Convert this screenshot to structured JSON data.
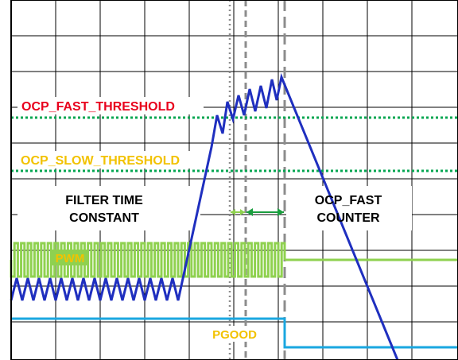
{
  "labels": {
    "ocp_fast_threshold": "OCP_FAST_THRESHOLD",
    "ocp_slow_threshold": "OCP_SLOW_THRESHOLD",
    "filter_time_line1": "FILTER TIME",
    "filter_time_line2": "CONSTANT",
    "ocp_fast_counter_line1": "OCP_FAST",
    "ocp_fast_counter_line2": "COUNTER",
    "pwm": "PWM",
    "pgood": "PGOOD"
  },
  "colors": {
    "grid": "#000000",
    "fast_threshold_line": "#00a651",
    "slow_threshold_line": "#00a651",
    "fast_label": "#e8001c",
    "slow_label": "#f2c200",
    "inductor_current": "#1f2fbf",
    "pwm": "#8fd14f",
    "pgood": "#1aa7e0",
    "pgood_label": "#f2c200",
    "pwm_label": "#f2c200",
    "text": "#000000",
    "marker_dotted": "#8c8c8c",
    "marker_dashed": "#8c8c8c",
    "filter_arrow": "#8fd14f",
    "counter_arrow": "#1a9e3f"
  }
}
